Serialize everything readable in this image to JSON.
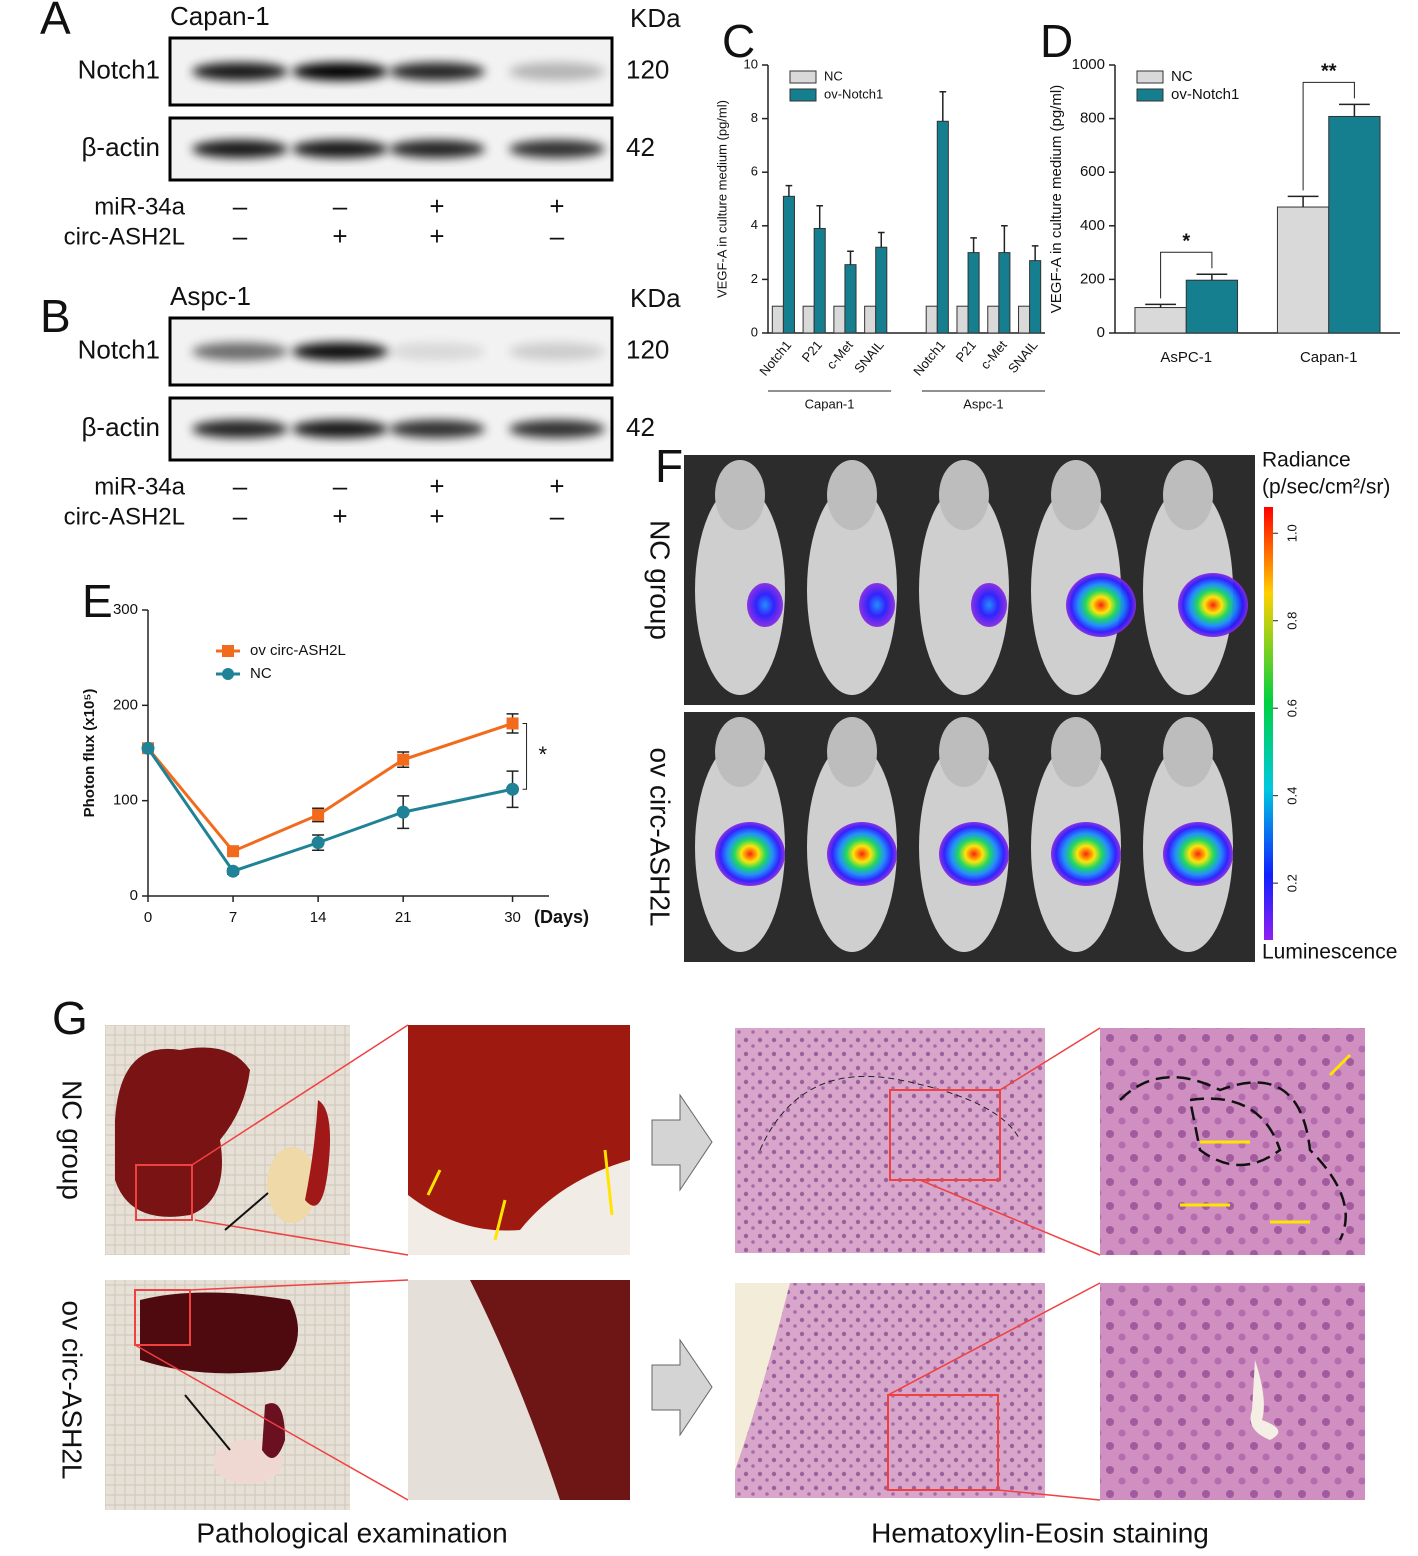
{
  "labels": [
    "A",
    "B",
    "C",
    "D",
    "E",
    "F",
    "G"
  ],
  "blots": [
    {
      "cell_line": "Capan-1",
      "unit": "KDa",
      "rows": [
        {
          "name": "Notch1",
          "kda": "120"
        },
        {
          "name": "β-actin",
          "kda": "42"
        }
      ],
      "conditions": [
        {
          "name": "miR-34a",
          "signs": [
            "–",
            "–",
            "+",
            "+"
          ]
        },
        {
          "name": "circ-ASH2L",
          "signs": [
            "–",
            "+",
            "+",
            "–"
          ]
        }
      ]
    },
    {
      "cell_line": "Aspc-1",
      "unit": "KDa",
      "rows": [
        {
          "name": "Notch1",
          "kda": "120"
        },
        {
          "name": "β-actin",
          "kda": "42"
        }
      ],
      "conditions": [
        {
          "name": "miR-34a",
          "signs": [
            "–",
            "–",
            "+",
            "+"
          ]
        },
        {
          "name": "circ-ASH2L",
          "signs": [
            "–",
            "+",
            "+",
            "–"
          ]
        }
      ]
    }
  ],
  "chart_data": [
    {
      "type": "bar",
      "ylabel": "VEGF-A in culture medium (pg/ml)",
      "categories": [
        "Notch1",
        "P21",
        "c-Met",
        "SNAIL",
        "Notch1",
        "P21",
        "c-Met",
        "SNAIL"
      ],
      "group_labels": [
        "Capan-1",
        "Aspc-1"
      ],
      "series": [
        {
          "name": "NC",
          "color": "#d9d9d9",
          "values": [
            1,
            1,
            1,
            1,
            1,
            1,
            1,
            1
          ],
          "errors": [
            0,
            0,
            0,
            0,
            0,
            0,
            0,
            0
          ]
        },
        {
          "name": "ov-Notch1",
          "color": "#167f8f",
          "values": [
            5.1,
            3.9,
            2.55,
            3.2,
            7.9,
            3.0,
            3.0,
            2.7
          ],
          "errors": [
            0.4,
            0.85,
            0.5,
            0.55,
            1.1,
            0.55,
            1.0,
            0.55
          ]
        }
      ],
      "ylim": [
        0,
        10
      ],
      "yticks": [
        0,
        2,
        4,
        6,
        8,
        10
      ],
      "legend": "upper left"
    },
    {
      "type": "bar",
      "ylabel": "VEGF-A in culture medium (pg/ml)",
      "categories": [
        "AsPC-1",
        "Capan-1"
      ],
      "series": [
        {
          "name": "NC",
          "color": "#d9d9d9",
          "values": [
            95,
            470
          ],
          "errors": [
            12,
            40
          ]
        },
        {
          "name": "ov-Notch1",
          "color": "#167f8f",
          "values": [
            197,
            808
          ],
          "errors": [
            22,
            45
          ]
        }
      ],
      "annotations": [
        "*",
        "**"
      ],
      "ylim": [
        0,
        1000
      ],
      "yticks": [
        0,
        200,
        400,
        600,
        800,
        1000
      ],
      "legend": "upper left"
    },
    {
      "type": "line",
      "ylabel": "Photon flux (x10⁵)",
      "xlabel": "(Days)",
      "x": [
        0,
        7,
        14,
        21,
        30
      ],
      "series": [
        {
          "name": "ov circ-ASH2L",
          "color": "#f26b1d",
          "marker": "square",
          "values": [
            155,
            47,
            85,
            143,
            181
          ],
          "errors": [
            0,
            3,
            7,
            8,
            10
          ]
        },
        {
          "name": "NC",
          "color": "#1f8296",
          "marker": "circle",
          "values": [
            155,
            26,
            56,
            88,
            112
          ],
          "errors": [
            0,
            3,
            8,
            17,
            19
          ]
        }
      ],
      "annotations": [
        "*"
      ],
      "xlim": [
        0,
        33
      ],
      "xticks": [
        0,
        7,
        14,
        21,
        30
      ],
      "ylim": [
        0,
        300
      ],
      "yticks": [
        0,
        100,
        200,
        300
      ],
      "legend": "upper left"
    }
  ],
  "imaging": {
    "groups": [
      "NC group",
      "ov circ-ASH2L"
    ],
    "colorbar": {
      "title": "Radiance",
      "unit": "(p/sec/cm²/sr)",
      "lim": [
        0.07,
        1.06
      ],
      "ticks": [
        {
          "value": 1,
          "label": "1.0"
        },
        {
          "value": 0.8,
          "label": "0.8"
        },
        {
          "value": 0.6,
          "label": "0.6"
        },
        {
          "value": 0.4,
          "label": "0.4"
        },
        {
          "value": 0.2,
          "label": "0.2"
        }
      ],
      "bottom_label": "Luminescence"
    }
  },
  "pathology": {
    "groups": [
      "NC group",
      "ov circ-ASH2L"
    ],
    "captions": [
      "Pathological examination",
      "Hematoxylin-Eosin staining"
    ]
  }
}
